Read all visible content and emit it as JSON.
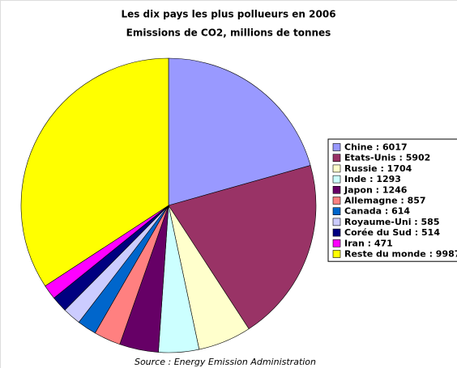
{
  "chart_data": {
    "type": "pie",
    "title": "Les dix pays les plus pollueurs en 2006",
    "subtitle": "Emissions de CO2, millions de tonnes",
    "source": "Source : Energy Emission Administration",
    "categories": [
      "Chine : 6017",
      "Etats-Unis : 5902",
      "Russie : 1704",
      "Inde : 1293",
      "Japon : 1246",
      "Allemagne : 857",
      "Canada : 614",
      "Royaume-Uni : 585",
      "Corée du Sud : 514",
      "Iran : 471",
      "Reste du monde : 9987"
    ],
    "values": [
      6017,
      5902,
      1704,
      1293,
      1246,
      857,
      614,
      585,
      514,
      471,
      9987
    ],
    "colors": [
      "#9999ff",
      "#993366",
      "#ffffcc",
      "#ccffff",
      "#660066",
      "#ff8080",
      "#0066cc",
      "#ccccff",
      "#000080",
      "#ff00ff",
      "#ffff00"
    ],
    "legend": "right"
  }
}
